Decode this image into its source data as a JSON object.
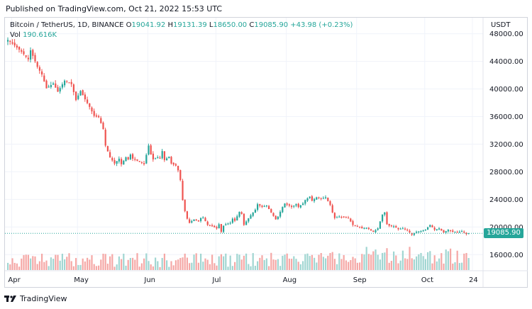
{
  "header": {
    "published": "Published on TradingView.com, Oct 21, 2022 15:53 UTC"
  },
  "legend": {
    "symbol": "Bitcoin / TetherUS, 1D, BINANCE",
    "open_label": "O",
    "open": "19041.92",
    "high_label": "H",
    "high": "19131.39",
    "low_label": "L",
    "low": "18650.00",
    "close_label": "C",
    "close": "19085.90",
    "change": "+43.98 (+0.23%)",
    "vol_label": "Vol",
    "vol": "190.616K"
  },
  "price_axis": {
    "currency": "USDT"
  },
  "last_price_tag": "19085.90",
  "footer": {
    "brand": "TradingView",
    "logo_icon": "tradingview-logo-icon"
  },
  "colors": {
    "up": "#26a69a",
    "down": "#ef5350",
    "vol_up": "#a1d6d2",
    "vol_down": "#f5a8a6",
    "grid": "#f0f3fa"
  },
  "chart_data": {
    "type": "candlestick",
    "title": "Bitcoin / TetherUS, 1D, BINANCE",
    "ylim": [
      15000,
      49500
    ],
    "y_ticks": [
      "48000.00",
      "44000.00",
      "40000.00",
      "36000.00",
      "32000.00",
      "28000.00",
      "24000.00",
      "20000.00",
      "16000.00"
    ],
    "x_ticks": [
      "Apr",
      "May",
      "Jun",
      "Jul",
      "Aug",
      "Sep",
      "Oct",
      "24"
    ],
    "x_tick_index": [
      2,
      31,
      62,
      92,
      123,
      154,
      184,
      205
    ],
    "close_path": [
      [
        0,
        47100
      ],
      [
        3,
        46300
      ],
      [
        6,
        45400
      ],
      [
        9,
        44300
      ],
      [
        10,
        45600
      ],
      [
        13,
        43200
      ],
      [
        15,
        42100
      ],
      [
        17,
        40100
      ],
      [
        20,
        40800
      ],
      [
        22,
        39600
      ],
      [
        25,
        41200
      ],
      [
        28,
        40700
      ],
      [
        30,
        38400
      ],
      [
        32,
        39700
      ],
      [
        34,
        38500
      ],
      [
        36,
        37400
      ],
      [
        38,
        36100
      ],
      [
        40,
        35900
      ],
      [
        42,
        34200
      ],
      [
        43,
        31800
      ],
      [
        45,
        30100
      ],
      [
        47,
        29200
      ],
      [
        49,
        29900
      ],
      [
        50,
        29100
      ],
      [
        52,
        30100
      ],
      [
        53,
        29800
      ],
      [
        54,
        30500
      ],
      [
        55,
        29900
      ],
      [
        57,
        29600
      ],
      [
        60,
        29100
      ],
      [
        62,
        31800
      ],
      [
        63,
        30500
      ],
      [
        64,
        29800
      ],
      [
        66,
        30100
      ],
      [
        67,
        29900
      ],
      [
        68,
        31000
      ],
      [
        69,
        29700
      ],
      [
        71,
        30200
      ],
      [
        72,
        29200
      ],
      [
        74,
        28900
      ],
      [
        75,
        28200
      ],
      [
        76,
        26800
      ],
      [
        77,
        23900
      ],
      [
        78,
        22300
      ],
      [
        79,
        21200
      ],
      [
        80,
        20600
      ],
      [
        82,
        21100
      ],
      [
        84,
        20800
      ],
      [
        85,
        21300
      ],
      [
        86,
        21400
      ],
      [
        88,
        20300
      ],
      [
        90,
        20100
      ],
      [
        92,
        19800
      ],
      [
        93,
        20400
      ],
      [
        94,
        19300
      ],
      [
        95,
        20200
      ],
      [
        96,
        20400
      ],
      [
        98,
        20600
      ],
      [
        99,
        21200
      ],
      [
        100,
        20900
      ],
      [
        102,
        22200
      ],
      [
        103,
        21900
      ],
      [
        104,
        20300
      ],
      [
        105,
        20800
      ],
      [
        107,
        21700
      ],
      [
        109,
        22500
      ],
      [
        110,
        23300
      ],
      [
        112,
        22900
      ],
      [
        114,
        23100
      ],
      [
        116,
        22100
      ],
      [
        118,
        21100
      ],
      [
        119,
        21500
      ],
      [
        121,
        22900
      ],
      [
        122,
        23400
      ],
      [
        124,
        23100
      ],
      [
        125,
        22900
      ],
      [
        127,
        23300
      ],
      [
        128,
        22900
      ],
      [
        130,
        23400
      ],
      [
        131,
        23900
      ],
      [
        133,
        24400
      ],
      [
        134,
        23800
      ],
      [
        136,
        24300
      ],
      [
        138,
        24100
      ],
      [
        140,
        24300
      ],
      [
        142,
        23200
      ],
      [
        143,
        22100
      ],
      [
        144,
        21300
      ],
      [
        146,
        21500
      ],
      [
        148,
        21400
      ],
      [
        150,
        21300
      ],
      [
        152,
        20300
      ],
      [
        154,
        20100
      ],
      [
        156,
        19800
      ],
      [
        158,
        19900
      ],
      [
        159,
        19700
      ],
      [
        161,
        19300
      ],
      [
        163,
        19800
      ],
      [
        165,
        21800
      ],
      [
        166,
        22100
      ],
      [
        167,
        20400
      ],
      [
        168,
        20200
      ],
      [
        170,
        20100
      ],
      [
        172,
        19700
      ],
      [
        174,
        19800
      ],
      [
        176,
        19500
      ],
      [
        178,
        18900
      ],
      [
        180,
        19300
      ],
      [
        182,
        19400
      ],
      [
        184,
        19600
      ],
      [
        186,
        20300
      ],
      [
        188,
        19600
      ],
      [
        190,
        19800
      ],
      [
        192,
        19200
      ],
      [
        194,
        19600
      ],
      [
        196,
        19300
      ],
      [
        198,
        19200
      ],
      [
        200,
        19400
      ],
      [
        202,
        19000
      ],
      [
        203,
        19086
      ]
    ]
  }
}
